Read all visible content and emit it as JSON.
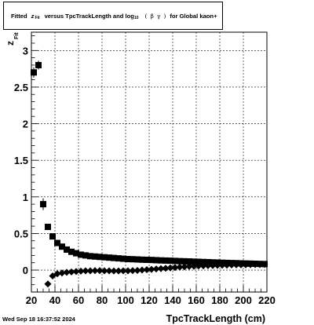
{
  "title": {
    "prefix": "Fitted",
    "symbol": "z",
    "symbol_sub": "Fit",
    "middle": "versus TpcTrackLength and log",
    "log_base": "10",
    "paren_open": "(",
    "beta": "β",
    "gamma": "γ",
    "paren_close": ")",
    "suffix": "for Global kaon+"
  },
  "timestamp": "Wed Sep 18 16:37:52 2024",
  "chart_data": {
    "type": "scatter",
    "title": "Fitted z_Fit versus TpcTrackLength and log10(βγ) for Global kaon+",
    "xlabel": "TpcTrackLength (cm)",
    "ylabel": "z_Fit",
    "ylabel_main": "z",
    "ylabel_sub": "Fit",
    "xlim": [
      20,
      220
    ],
    "ylim": [
      -0.3,
      3.25
    ],
    "xticks": [
      20,
      40,
      60,
      80,
      100,
      120,
      140,
      160,
      180,
      200,
      220
    ],
    "xtick_labels": [
      "20",
      "40",
      "60",
      "80",
      "100",
      "120",
      "140",
      "160",
      "180",
      "200",
      "220"
    ],
    "yticks": [
      0,
      0.5,
      1,
      1.5,
      2,
      2.5,
      3
    ],
    "ytick_labels": [
      "0",
      "0.5",
      "1",
      "1.5",
      "2",
      "2.5",
      "3"
    ],
    "grid": true,
    "series": [
      {
        "marker": "square",
        "color": "#000000",
        "x": [
          22,
          26,
          30,
          34,
          38,
          42,
          46,
          50,
          54,
          58,
          62,
          66,
          70,
          74,
          78,
          82,
          86,
          90,
          94,
          98,
          102,
          106,
          110,
          114,
          118,
          122,
          126,
          130,
          134,
          138,
          142,
          146,
          150,
          154,
          158,
          162,
          166,
          170,
          174,
          178,
          182,
          186,
          190,
          194,
          198,
          202,
          206,
          210,
          214,
          218
        ],
        "y": [
          2.7,
          2.8,
          0.9,
          0.59,
          0.46,
          0.37,
          0.32,
          0.28,
          0.25,
          0.23,
          0.21,
          0.2,
          0.19,
          0.185,
          0.18,
          0.175,
          0.17,
          0.165,
          0.16,
          0.155,
          0.15,
          0.148,
          0.145,
          0.142,
          0.14,
          0.138,
          0.135,
          0.132,
          0.13,
          0.128,
          0.125,
          0.122,
          0.12,
          0.118,
          0.115,
          0.113,
          0.11,
          0.108,
          0.105,
          0.103,
          0.1,
          0.098,
          0.096,
          0.094,
          0.092,
          0.09,
          0.088,
          0.086,
          0.084,
          0.082
        ],
        "yerr": [
          0.07,
          0.06,
          0.08,
          0.03,
          0.02,
          0.01,
          0.01,
          0.01,
          0.01,
          0.01,
          0.01,
          0.01,
          0.01,
          0.01,
          0.01,
          0.01,
          0.01,
          0.01,
          0.01,
          0.01,
          0.01,
          0.01,
          0.01,
          0.01,
          0.01,
          0.01,
          0.01,
          0.01,
          0.01,
          0.01,
          0.01,
          0.01,
          0.01,
          0.01,
          0.01,
          0.01,
          0.01,
          0.01,
          0.01,
          0.01,
          0.01,
          0.01,
          0.01,
          0.01,
          0.01,
          0.01,
          0.01,
          0.01,
          0.01,
          0.01
        ]
      },
      {
        "marker": "diamond",
        "color": "#000000",
        "x": [
          34,
          38,
          42,
          46,
          50,
          54,
          58,
          62,
          66,
          70,
          74,
          78,
          82,
          86,
          90,
          94,
          98,
          102,
          106,
          110,
          114,
          118,
          122,
          126,
          130,
          134,
          138,
          142,
          146,
          150,
          154,
          158,
          162,
          166,
          170,
          174,
          178,
          182,
          186,
          190,
          194,
          198,
          202,
          206,
          210,
          214,
          218
        ],
        "y": [
          -0.19,
          -0.08,
          -0.05,
          -0.04,
          -0.03,
          -0.025,
          -0.02,
          -0.015,
          -0.01,
          -0.01,
          -0.008,
          -0.008,
          -0.01,
          -0.01,
          -0.012,
          -0.012,
          -0.01,
          -0.01,
          -0.008,
          -0.005,
          0.0,
          0.005,
          0.01,
          0.015,
          0.02,
          0.025,
          0.03,
          0.035,
          0.04,
          0.045,
          0.05,
          0.053,
          0.056,
          0.058,
          0.06,
          0.062,
          0.064,
          0.066,
          0.068,
          0.07,
          0.071,
          0.072,
          0.073,
          0.074,
          0.075,
          0.076,
          0.077
        ],
        "yerr": [
          0.03,
          0.02,
          0.01,
          0.01,
          0.01,
          0.01,
          0.01,
          0.01,
          0.01,
          0.01,
          0.01,
          0.01,
          0.01,
          0.01,
          0.01,
          0.01,
          0.01,
          0.01,
          0.01,
          0.01,
          0.01,
          0.01,
          0.01,
          0.01,
          0.01,
          0.01,
          0.01,
          0.01,
          0.01,
          0.01,
          0.01,
          0.01,
          0.01,
          0.01,
          0.01,
          0.01,
          0.01,
          0.01,
          0.01,
          0.01,
          0.01,
          0.01,
          0.01,
          0.01,
          0.01,
          0.01,
          0.01
        ]
      }
    ]
  }
}
